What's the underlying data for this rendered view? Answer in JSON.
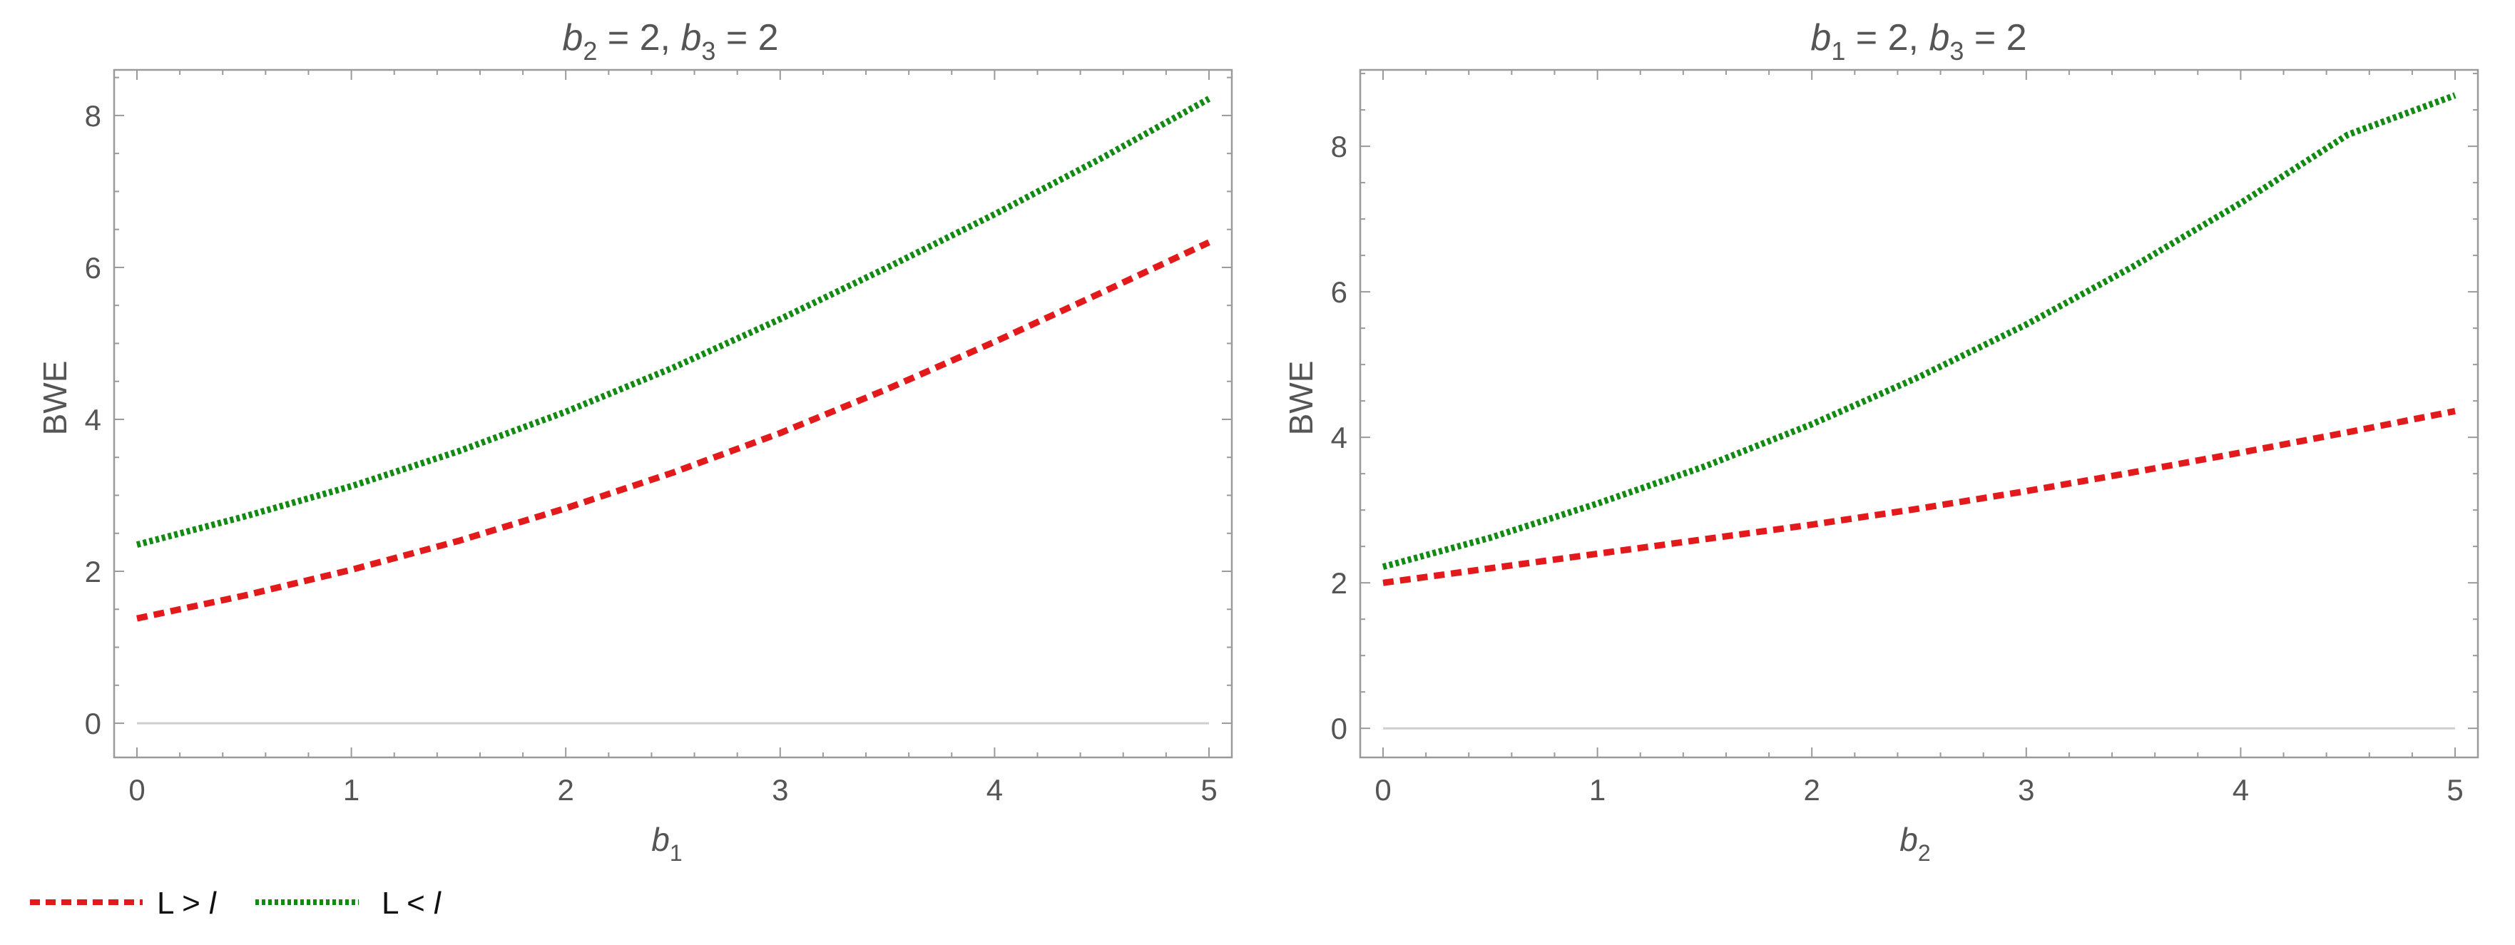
{
  "legend": {
    "items": [
      {
        "text": "L > l",
        "color": "#e31a1c",
        "style": "dashed"
      },
      {
        "text": "L < l",
        "color": "#138a13",
        "style": "dotted"
      }
    ]
  },
  "chart_data": [
    {
      "type": "line",
      "title": "b2 = 2, b3 = 2",
      "title_parts": {
        "var1": "b",
        "sub1": "2",
        "val1": " = 2, ",
        "var2": "b",
        "sub2": "3",
        "val2": " = 2"
      },
      "xlabel": "b1",
      "xlabel_parts": {
        "var": "b",
        "sub": "1"
      },
      "ylabel": "BWE",
      "xlim": [
        0,
        5
      ],
      "ylim": [
        -0.45,
        8.6
      ],
      "xticks": [
        0,
        1,
        2,
        3,
        4,
        5
      ],
      "yticks": [
        0,
        2,
        4,
        6,
        8
      ],
      "grid": false,
      "series": [
        {
          "name": "L > l",
          "color": "#e31a1c",
          "style": "dashed",
          "x": [
            0,
            0.5,
            1,
            1.5,
            2,
            2.5,
            3,
            3.5,
            4,
            4.5,
            5
          ],
          "y": [
            1.38,
            1.68,
            2.02,
            2.4,
            2.83,
            3.3,
            3.82,
            4.4,
            5.02,
            5.67,
            6.33
          ]
        },
        {
          "name": "L < l",
          "color": "#138a13",
          "style": "dotted",
          "x": [
            0,
            0.5,
            1,
            1.5,
            2,
            2.5,
            3,
            3.5,
            4,
            4.5,
            5
          ],
          "y": [
            2.35,
            2.72,
            3.12,
            3.58,
            4.1,
            4.68,
            5.32,
            6.0,
            6.7,
            7.44,
            8.22
          ]
        }
      ]
    },
    {
      "type": "line",
      "title": "b1 = 2, b3 = 2",
      "title_parts": {
        "var1": "b",
        "sub1": "1",
        "val1": " = 2, ",
        "var2": "b",
        "sub2": "3",
        "val2": " = 2"
      },
      "xlabel": "b2",
      "xlabel_parts": {
        "var": "b",
        "sub": "2"
      },
      "ylabel": "BWE",
      "xlim": [
        0,
        5
      ],
      "ylim": [
        -0.4,
        9.05
      ],
      "xticks": [
        0,
        1,
        2,
        3,
        4,
        5
      ],
      "yticks": [
        0,
        2,
        4,
        6,
        8
      ],
      "grid": false,
      "series": [
        {
          "name": "L > l",
          "color": "#e31a1c",
          "style": "dashed",
          "x": [
            0,
            0.5,
            1,
            1.5,
            2,
            2.5,
            3,
            3.5,
            4,
            4.5,
            5
          ],
          "y": [
            2.0,
            2.2,
            2.4,
            2.6,
            2.8,
            3.02,
            3.26,
            3.52,
            3.79,
            4.07,
            4.36
          ]
        },
        {
          "name": "L < l",
          "color": "#138a13",
          "style": "dotted",
          "x": [
            0,
            0.5,
            1,
            1.5,
            2,
            2.5,
            3,
            3.5,
            4,
            4.5,
            5
          ],
          "y": [
            2.22,
            2.62,
            3.09,
            3.6,
            4.18,
            4.83,
            5.55,
            6.35,
            7.22,
            8.16,
            8.7
          ]
        }
      ]
    }
  ]
}
